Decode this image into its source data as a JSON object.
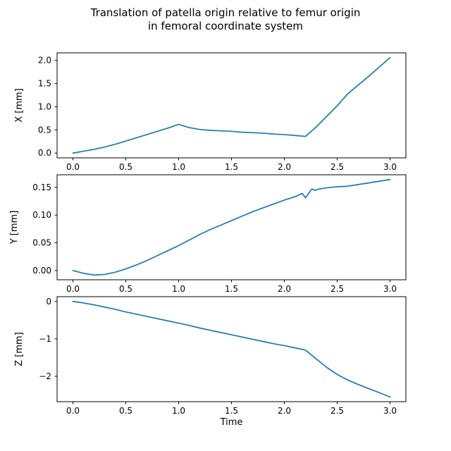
{
  "figure": {
    "title_line1": "Translation of patella origin relative to femur origin",
    "title_line2": "in femoral coordinate system",
    "xlabel": "Time",
    "line_color": "#1f77b4",
    "axis_color": "#000000",
    "background": "#ffffff"
  },
  "chart_data": [
    {
      "type": "line",
      "ylabel": "X [mm]",
      "x": [
        0.0,
        0.1,
        0.2,
        0.3,
        0.4,
        0.5,
        0.6,
        0.7,
        0.8,
        0.9,
        1.0,
        1.1,
        1.2,
        1.3,
        1.4,
        1.5,
        1.6,
        1.7,
        1.8,
        1.9,
        2.0,
        2.1,
        2.2,
        2.3,
        2.4,
        2.5,
        2.6,
        2.7,
        2.8,
        2.9,
        3.0
      ],
      "y": [
        0.0,
        0.04,
        0.08,
        0.13,
        0.19,
        0.26,
        0.33,
        0.4,
        0.47,
        0.54,
        0.62,
        0.55,
        0.51,
        0.49,
        0.48,
        0.47,
        0.45,
        0.44,
        0.43,
        0.41,
        0.4,
        0.38,
        0.36,
        0.56,
        0.79,
        1.02,
        1.28,
        1.47,
        1.66,
        1.86,
        2.06
      ],
      "xlim": [
        -0.15,
        3.15
      ],
      "ylim": [
        -0.103,
        2.163
      ],
      "xticks": [
        "0.0",
        "0.5",
        "1.0",
        "1.5",
        "2.0",
        "2.5",
        "3.0"
      ],
      "xtick_values": [
        0,
        0.5,
        1,
        1.5,
        2,
        2.5,
        3
      ],
      "yticks": [
        "0.0",
        "0.5",
        "1.0",
        "1.5",
        "2.0"
      ],
      "ytick_values": [
        0,
        0.5,
        1,
        1.5,
        2
      ],
      "grid": false,
      "legend": null
    },
    {
      "type": "line",
      "ylabel": "Y [mm]",
      "x": [
        0.0,
        0.1,
        0.2,
        0.3,
        0.4,
        0.5,
        0.6,
        0.7,
        0.8,
        0.9,
        1.0,
        1.1,
        1.2,
        1.3,
        1.4,
        1.5,
        1.6,
        1.7,
        1.8,
        1.9,
        2.0,
        2.1,
        2.17,
        2.2,
        2.26,
        2.29,
        2.33,
        2.4,
        2.5,
        2.6,
        2.7,
        2.8,
        2.9,
        3.0
      ],
      "y": [
        0.0,
        -0.005,
        -0.008,
        -0.007,
        -0.003,
        0.003,
        0.01,
        0.018,
        0.027,
        0.036,
        0.045,
        0.055,
        0.065,
        0.074,
        0.082,
        0.09,
        0.098,
        0.106,
        0.113,
        0.12,
        0.127,
        0.133,
        0.139,
        0.131,
        0.147,
        0.1445,
        0.147,
        0.149,
        0.151,
        0.152,
        0.155,
        0.158,
        0.161,
        0.164
      ],
      "xlim": [
        -0.15,
        3.15
      ],
      "ylim": [
        -0.0166,
        0.1726
      ],
      "xticks": [
        "0.0",
        "0.5",
        "1.0",
        "1.5",
        "2.0",
        "2.5",
        "3.0"
      ],
      "xtick_values": [
        0,
        0.5,
        1,
        1.5,
        2,
        2.5,
        3
      ],
      "yticks": [
        "0.00",
        "0.05",
        "0.10",
        "0.15"
      ],
      "ytick_values": [
        0,
        0.05,
        0.1,
        0.15
      ],
      "grid": false,
      "legend": null
    },
    {
      "type": "line",
      "ylabel": "Z [mm]",
      "x": [
        0.0,
        0.1,
        0.2,
        0.3,
        0.4,
        0.5,
        0.6,
        0.7,
        0.8,
        0.9,
        1.0,
        1.1,
        1.2,
        1.3,
        1.4,
        1.5,
        1.6,
        1.7,
        1.8,
        1.9,
        2.0,
        2.1,
        2.2,
        2.3,
        2.4,
        2.5,
        2.6,
        2.7,
        2.8,
        2.9,
        3.0
      ],
      "y": [
        0.0,
        -0.04,
        -0.09,
        -0.15,
        -0.21,
        -0.28,
        -0.34,
        -0.4,
        -0.46,
        -0.52,
        -0.58,
        -0.64,
        -0.71,
        -0.77,
        -0.83,
        -0.89,
        -0.95,
        -1.01,
        -1.07,
        -1.13,
        -1.18,
        -1.24,
        -1.3,
        -1.53,
        -1.76,
        -1.95,
        -2.1,
        -2.22,
        -2.33,
        -2.44,
        -2.55
      ],
      "xlim": [
        -0.15,
        3.15
      ],
      "ylim": [
        -2.6775,
        0.1275
      ],
      "xticks": [
        "0.0",
        "0.5",
        "1.0",
        "1.5",
        "2.0",
        "2.5",
        "3.0"
      ],
      "xtick_values": [
        0,
        0.5,
        1,
        1.5,
        2,
        2.5,
        3
      ],
      "yticks": [
        "0",
        "−1",
        "−2"
      ],
      "ytick_values": [
        0,
        -1,
        -2
      ],
      "grid": false,
      "legend": null
    }
  ]
}
